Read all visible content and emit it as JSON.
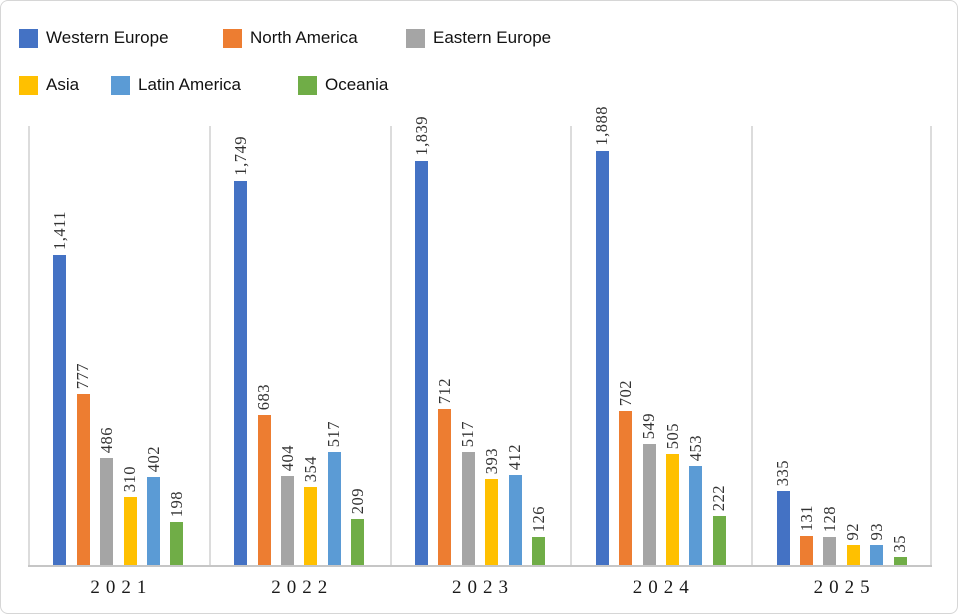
{
  "figure": {
    "background": "#ffffff",
    "border_color": "#d6d6d6",
    "separator_color": "#dcdcdc",
    "baseline_color": "#c6c6c6"
  },
  "legend": {
    "position": "top-left",
    "rows": 2,
    "items": [
      {
        "label": "Western Europe",
        "color": "#4472C4"
      },
      {
        "label": "North America",
        "color": "#ED7D31"
      },
      {
        "label": "Eastern Europe",
        "color": "#A5A5A5"
      },
      {
        "label": "Asia",
        "color": "#FFC000"
      },
      {
        "label": "Latin America",
        "color": "#5B9BD5"
      },
      {
        "label": "Oceania",
        "color": "#70AD47"
      }
    ]
  },
  "chart_data": {
    "type": "bar",
    "title": "",
    "xlabel": "",
    "ylabel": "",
    "categories": [
      "2021",
      "2022",
      "2023",
      "2024",
      "2025"
    ],
    "series": [
      {
        "name": "Western Europe",
        "color": "#4472C4",
        "values": [
          1411,
          1749,
          1839,
          1888,
          335
        ]
      },
      {
        "name": "North America",
        "color": "#ED7D31",
        "values": [
          777,
          683,
          712,
          702,
          131
        ]
      },
      {
        "name": "Eastern Europe",
        "color": "#A5A5A5",
        "values": [
          486,
          404,
          517,
          549,
          128
        ]
      },
      {
        "name": "Asia",
        "color": "#FFC000",
        "values": [
          310,
          354,
          393,
          505,
          92
        ]
      },
      {
        "name": "Latin America",
        "color": "#5B9BD5",
        "values": [
          402,
          517,
          412,
          453,
          93
        ]
      },
      {
        "name": "Oceania",
        "color": "#70AD47",
        "values": [
          198,
          209,
          126,
          222,
          35
        ]
      }
    ],
    "ylim": [
      0,
      2000
    ],
    "grid": "vertical-panel-separators-only",
    "y_axis_ticks_visible": false,
    "data_labels": {
      "visible": true,
      "rotation": "vertical-bottom-to-top",
      "thousands_separator": ","
    }
  }
}
